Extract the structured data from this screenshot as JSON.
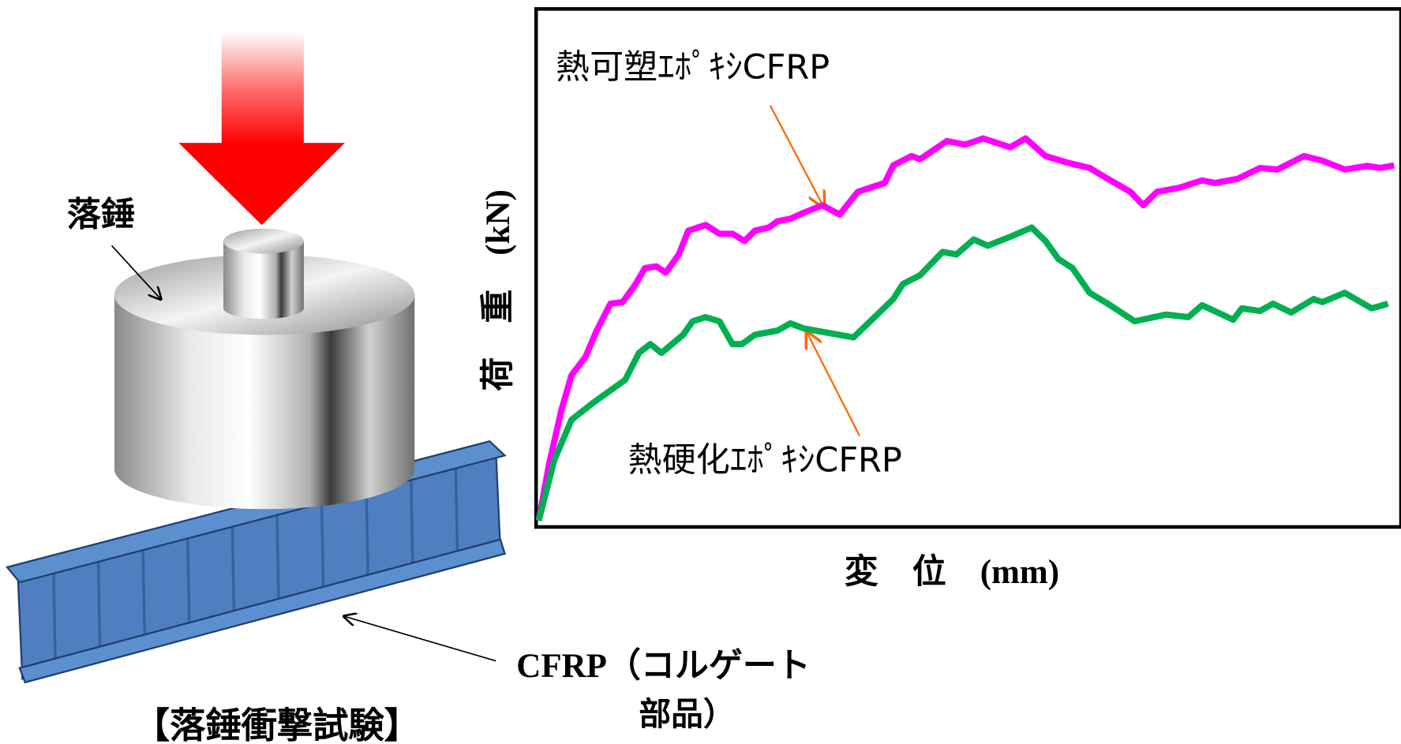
{
  "illustration": {
    "weight_label": "落錘",
    "part_label_line1": "CFRP（コルゲート",
    "part_label_line2": "部品）",
    "caption": "【落錘衝撃試験】"
  },
  "chart_data": {
    "type": "line",
    "xlabel": "変　位　(mm)",
    "ylabel": "荷　重　(kN)",
    "xlim": [
      0,
      100
    ],
    "ylim": [
      0,
      100
    ],
    "series": [
      {
        "name": "熱可塑ｴﾎﾟｷｼCFRP",
        "color": "#ff00ff",
        "x": [
          0.3,
          1.5,
          2.9,
          4.1,
          5.7,
          7.0,
          8.6,
          10.0,
          11.4,
          12.6,
          13.9,
          15.0,
          16.5,
          17.6,
          19.6,
          21.2,
          22.7,
          24.1,
          25.3,
          26.9,
          27.9,
          29.4,
          31.0,
          33.1,
          35.1,
          37.2,
          40.3,
          41.3,
          43.4,
          44.4,
          47.5,
          49.6,
          51.7,
          54.8,
          56.6,
          58.9,
          61.5,
          64.0,
          66.1,
          68.7,
          70.2,
          71.8,
          74.4,
          77.0,
          78.5,
          81.1,
          83.7,
          85.7,
          88.8,
          90.9,
          93.5,
          96.1,
          97.6,
          99.2
        ],
        "values": [
          1.2,
          12.1,
          22.4,
          29.3,
          32.8,
          37.9,
          43.1,
          43.4,
          46.6,
          50.0,
          50.3,
          49.1,
          52.6,
          57.2,
          58.3,
          56.6,
          56.6,
          55.2,
          57.2,
          57.8,
          59.0,
          59.5,
          60.7,
          62.1,
          60.3,
          64.7,
          66.4,
          69.8,
          71.6,
          71.0,
          74.5,
          73.8,
          75.0,
          73.3,
          75.0,
          71.6,
          70.3,
          69.3,
          67.2,
          64.7,
          62.1,
          64.7,
          65.5,
          66.9,
          66.4,
          67.2,
          69.3,
          69.0,
          71.6,
          70.7,
          69.0,
          69.7,
          69.3,
          69.8
        ]
      },
      {
        "name": "熱硬化ｴﾎﾟｷｼCFRP",
        "color": "#00b050",
        "x": [
          0.3,
          2.1,
          4.1,
          6.7,
          10.3,
          11.9,
          13.2,
          14.5,
          17.0,
          18.1,
          19.6,
          21.2,
          22.7,
          23.8,
          25.3,
          27.9,
          29.4,
          31.0,
          36.7,
          41.3,
          42.4,
          44.4,
          47.0,
          48.6,
          50.6,
          52.2,
          54.8,
          57.3,
          58.9,
          60.4,
          62.0,
          64.0,
          66.1,
          69.2,
          72.8,
          75.4,
          77.0,
          80.6,
          81.6,
          83.7,
          85.2,
          87.3,
          89.9,
          90.9,
          93.5,
          96.6,
          98.5
        ],
        "values": [
          1.2,
          12.9,
          20.7,
          24.1,
          28.4,
          33.6,
          35.3,
          33.6,
          37.1,
          39.7,
          40.5,
          39.7,
          35.3,
          35.3,
          37.1,
          37.9,
          39.3,
          38.3,
          36.6,
          44.0,
          46.9,
          48.6,
          53.1,
          52.6,
          55.5,
          54.3,
          56.0,
          57.8,
          55.2,
          51.7,
          50.0,
          45.2,
          43.1,
          39.7,
          41.0,
          40.5,
          42.8,
          40.0,
          42.2,
          41.7,
          43.1,
          41.4,
          44.0,
          43.4,
          45.2,
          42.2,
          43.1
        ]
      }
    ]
  }
}
